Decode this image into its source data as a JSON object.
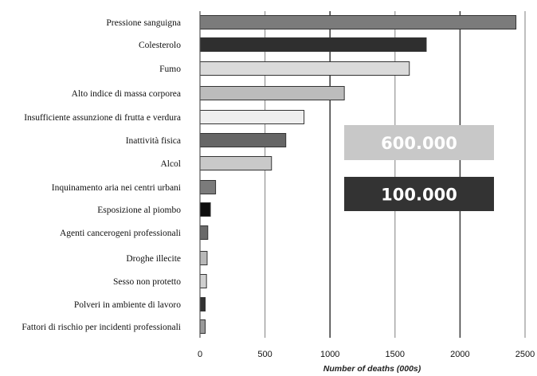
{
  "chart_data": {
    "type": "bar",
    "orientation": "horizontal",
    "categories": [
      "Pressione sanguigna",
      "Colesterolo",
      "Fumo",
      "Alto indice di massa corporea",
      "Insufficiente assunzione di frutta e verdura",
      "Inattività fisica",
      "Alcol",
      "Inquinamento aria nei centri urbani",
      "Esposizione al piombo",
      "Agenti cancerogeni professionali",
      "Droghe  illecite",
      "Sesso non protetto",
      "Polveri in ambiente di lavoro",
      "Fattori di rischio per incidenti professionali"
    ],
    "values": [
      2430,
      1740,
      1610,
      1110,
      800,
      660,
      550,
      120,
      80,
      60,
      55,
      50,
      40,
      40
    ],
    "bar_colors": [
      "#7b7b7b",
      "#2f2f2f",
      "#dadada",
      "#bcbcbc",
      "#efefef",
      "#666666",
      "#c9c9c9",
      "#7b7b7b",
      "#0d0d0d",
      "#6a6a6a",
      "#b8b8b8",
      "#cfcfcf",
      "#333333",
      "#9a9a9a"
    ],
    "xlabel": "Number of deaths (000s)",
    "xlim": [
      0,
      2500
    ],
    "xticks": [
      0,
      500,
      1000,
      1500,
      2000,
      2500
    ],
    "grid": true,
    "annotations": [
      {
        "text": "600.000",
        "color": "#c8c8c8"
      },
      {
        "text": "100.000",
        "color": "#333333"
      }
    ]
  }
}
